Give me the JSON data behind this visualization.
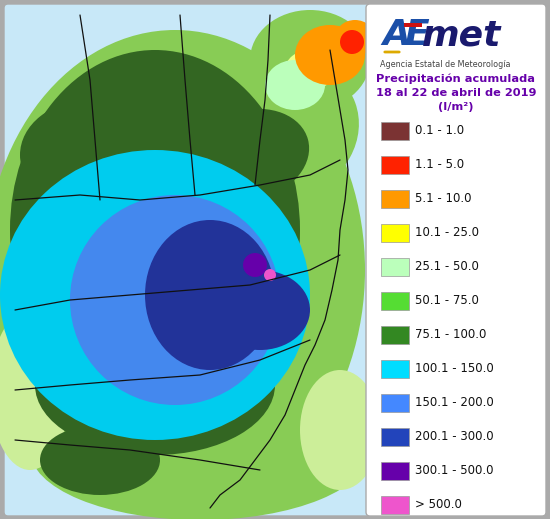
{
  "title_line1": "Precipitación acumulada",
  "title_line2": "18 al 22 de abril de 2019",
  "title_line3": "(l/m²)",
  "legend_entries": [
    {
      "label": "0.1 - 1.0",
      "color": "#7B3333"
    },
    {
      "label": "1.1 - 5.0",
      "color": "#FF2200"
    },
    {
      "label": "5.1 - 10.0",
      "color": "#FF9900"
    },
    {
      "label": "10.1 - 25.0",
      "color": "#FFFF00"
    },
    {
      "label": "25.1 - 50.0",
      "color": "#BBFFBB"
    },
    {
      "label": "50.1 - 75.0",
      "color": "#55DD33"
    },
    {
      "label": "75.1 - 100.0",
      "color": "#338822"
    },
    {
      "label": "100.1 - 150.0",
      "color": "#00DDFF"
    },
    {
      "label": "150.1 - 200.0",
      "color": "#4488FF"
    },
    {
      "label": "200.1 - 300.0",
      "color": "#2244BB"
    },
    {
      "label": "300.1 - 500.0",
      "color": "#6600AA"
    },
    {
      "label": "> 500.0",
      "color": "#EE55CC"
    }
  ],
  "bg_color": "#AAAAAA",
  "panel_bg": "#FFFFFF",
  "title_color": "#6600AA",
  "map_colors": {
    "sea": "#C8E8F8",
    "land_lt_green": "#88CC55",
    "land_dk_green": "#336622",
    "cyan": "#00CCEE",
    "blue_med": "#4488EE",
    "blue_dk": "#223399",
    "orange": "#FF9900",
    "red": "#FF2200",
    "lt_yellow": "#DDFFAA"
  },
  "figsize": [
    5.5,
    5.19
  ],
  "dpi": 100
}
